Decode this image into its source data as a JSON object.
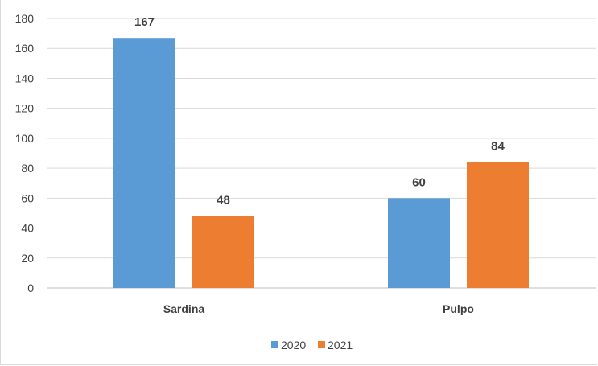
{
  "chart_data": {
    "type": "bar",
    "categories": [
      "Sardina",
      "Pulpo"
    ],
    "series": [
      {
        "name": "2020",
        "values": [
          167,
          60
        ],
        "color": "#5b9bd5"
      },
      {
        "name": "2021",
        "values": [
          48,
          84
        ],
        "color": "#ed7d31"
      }
    ],
    "ylim": [
      0,
      180
    ],
    "yticks": [
      0,
      20,
      40,
      60,
      80,
      100,
      120,
      140,
      160,
      180
    ],
    "grid": true,
    "legend": "bottom",
    "data_labels": true
  }
}
